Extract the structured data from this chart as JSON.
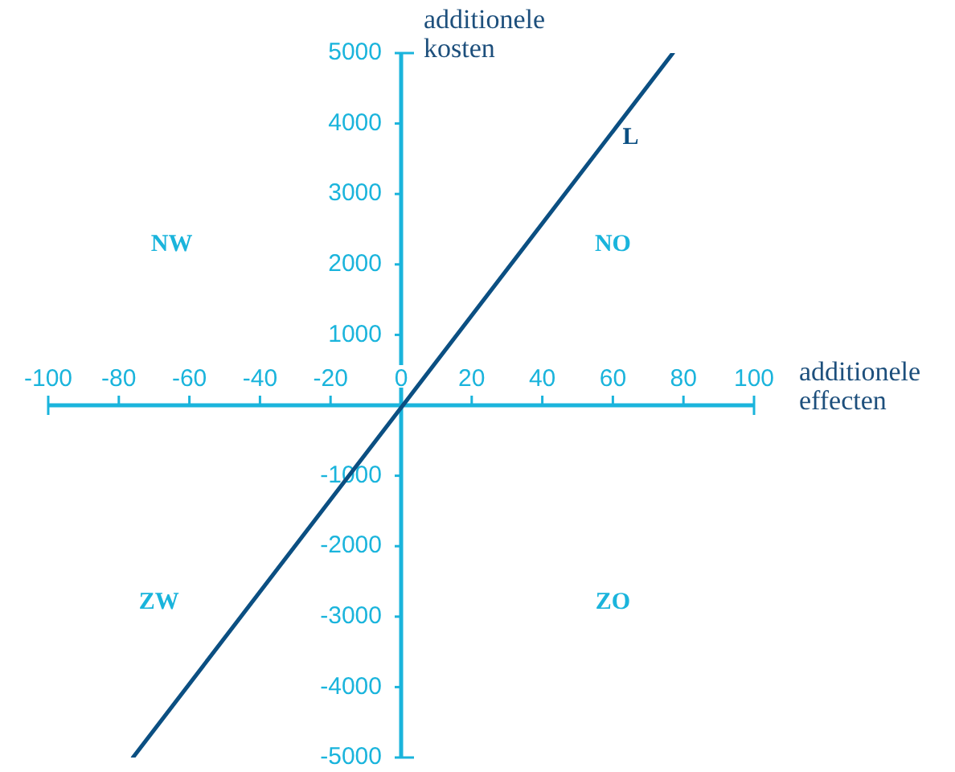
{
  "chart_data": {
    "type": "line",
    "xlabel": "additionele effecten",
    "ylabel": "additionele kosten",
    "x": [
      -76,
      77
    ],
    "series": [
      {
        "name": "L",
        "color": "#0b4f82",
        "values": [
          -5000,
          5000
        ]
      }
    ],
    "xlim": [
      -100,
      100
    ],
    "xticks": [
      -100,
      -80,
      -60,
      -40,
      -20,
      0,
      20,
      40,
      60,
      80,
      100
    ],
    "ylim": [
      -5000,
      5000
    ],
    "yticks": [
      -5000,
      -4000,
      -3000,
      -2000,
      -1000,
      1000,
      2000,
      3000,
      4000,
      5000
    ],
    "annotations": [
      "NW",
      "NO",
      "ZW",
      "ZO"
    ],
    "grid": false,
    "legend": false,
    "marker": "none",
    "line_style": "solid"
  }
}
